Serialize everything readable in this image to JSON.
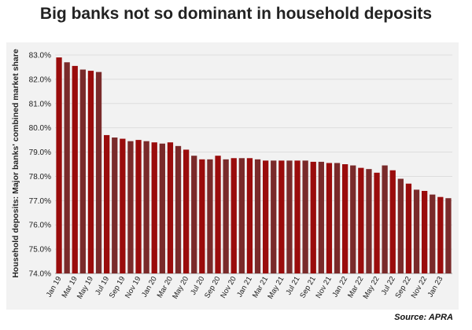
{
  "title": "Big banks not so dominant in household deposits",
  "source": "Source: APRA",
  "chart_data": {
    "type": "bar",
    "title": "Big banks not so dominant in household deposits",
    "xlabel": "",
    "ylabel": "Household deposits: Major banks' combined market share",
    "ylim": [
      74.0,
      83.0
    ],
    "yticks": [
      "74.0%",
      "75.0%",
      "76.0%",
      "77.0%",
      "78.0%",
      "79.0%",
      "80.0%",
      "81.0%",
      "82.0%",
      "83.0%"
    ],
    "grid": true,
    "bar_colors": [
      "#9a0c0c",
      "#7a2a2a"
    ],
    "categories": [
      "Jan 19",
      "Feb 19",
      "Mar 19",
      "Apr 19",
      "May 19",
      "Jun 19",
      "Jul 19",
      "Aug 19",
      "Sep 19",
      "Oct 19",
      "Nov 19",
      "Dec 19",
      "Jan 20",
      "Feb 20",
      "Mar 20",
      "Apr 20",
      "May 20",
      "Jun 20",
      "Jul 20",
      "Aug 20",
      "Sep 20",
      "Oct 20",
      "Nov 20",
      "Dec 20",
      "Jan 21",
      "Feb 21",
      "Mar 21",
      "Apr 21",
      "May 21",
      "Jun 21",
      "Jul 21",
      "Aug 21",
      "Sep 21",
      "Oct 21",
      "Nov 21",
      "Dec 21",
      "Jan 22",
      "Feb 22",
      "Mar 22",
      "Apr 22",
      "May 22",
      "Jun 22",
      "Jul 22",
      "Aug 22",
      "Sep 22",
      "Oct 22",
      "Nov 22",
      "Dec 22",
      "Jan 23",
      "Feb 23"
    ],
    "tick_labels": [
      "Jan 19",
      "Mar 19",
      "May 19",
      "Jul 19",
      "Sep 19",
      "Nov 19",
      "Jan 20",
      "Mar 20",
      "May 20",
      "Jul 20",
      "Sep 20",
      "Nov 20",
      "Jan 21",
      "Mar 21",
      "May 21",
      "Jul 21",
      "Sep 21",
      "Nov 21",
      "Jan 22",
      "Mar 22",
      "May 22",
      "Jul 22",
      "Sep 22",
      "Nov 22",
      "Jan 23"
    ],
    "values": [
      82.9,
      82.7,
      82.55,
      82.4,
      82.35,
      82.3,
      79.7,
      79.6,
      79.55,
      79.45,
      79.5,
      79.45,
      79.4,
      79.35,
      79.4,
      79.25,
      79.1,
      78.85,
      78.7,
      78.7,
      78.85,
      78.7,
      78.75,
      78.75,
      78.75,
      78.7,
      78.65,
      78.65,
      78.65,
      78.65,
      78.65,
      78.65,
      78.6,
      78.6,
      78.55,
      78.55,
      78.5,
      78.45,
      78.35,
      78.3,
      78.15,
      78.45,
      78.25,
      77.9,
      77.7,
      77.45,
      77.4,
      77.25,
      77.15,
      77.1
    ]
  }
}
